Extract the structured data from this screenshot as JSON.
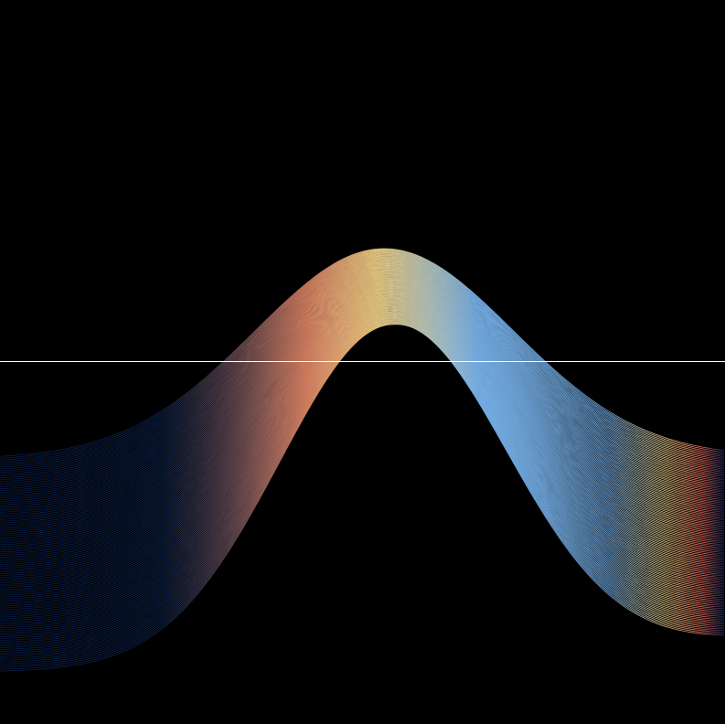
{
  "canvas": {
    "background_color": "#000000",
    "horizon_line_color": "#ffffff"
  },
  "wave": {
    "curve_count": 120,
    "stroke_opacity": 0.9,
    "gradient_stops": [
      {
        "pos": 0.0,
        "color": "#0a1f4d"
      },
      {
        "pos": 0.22,
        "color": "#0f2a5c"
      },
      {
        "pos": 0.42,
        "color": "#e88a6a"
      },
      {
        "pos": 0.52,
        "color": "#f8d88a"
      },
      {
        "pos": 0.66,
        "color": "#7ab6f0"
      },
      {
        "pos": 0.84,
        "color": "#7ab6f0"
      },
      {
        "pos": 0.92,
        "color": "#f2d488"
      },
      {
        "pos": 0.97,
        "color": "#ec6b5e"
      },
      {
        "pos": 1.0,
        "color": "#0c2a66"
      }
    ]
  }
}
